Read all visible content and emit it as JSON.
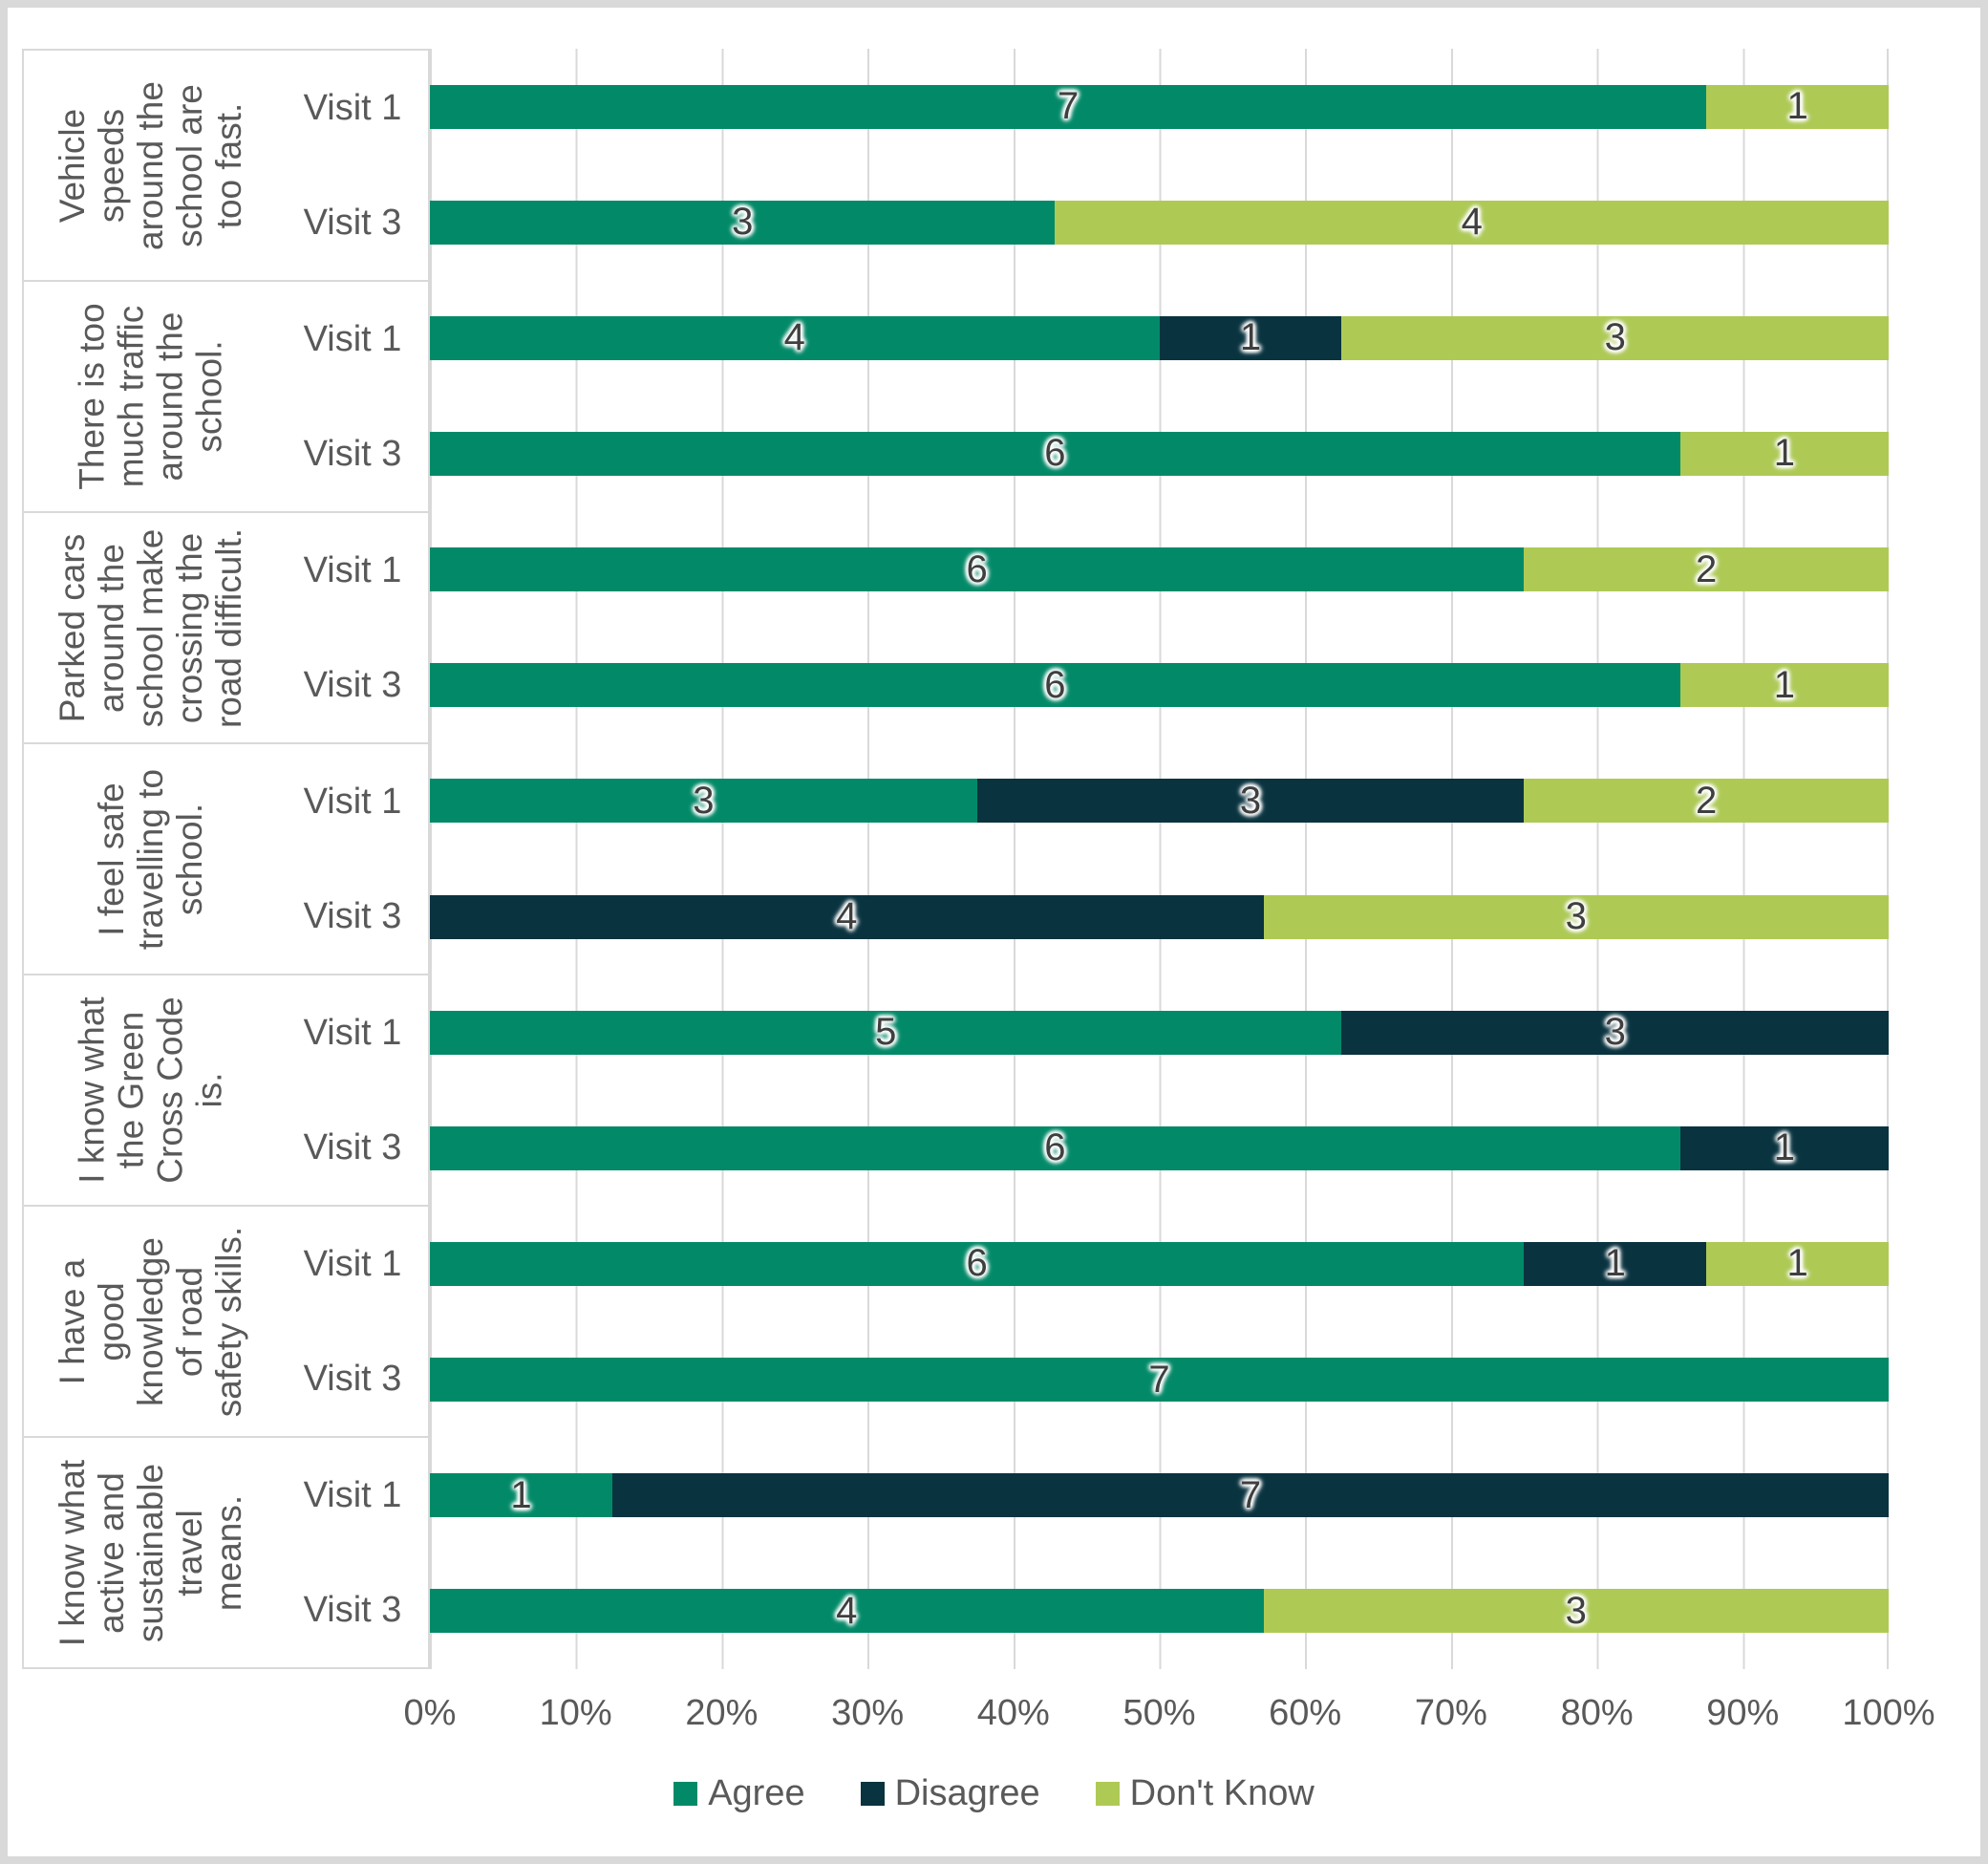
{
  "chart_data": {
    "type": "bar",
    "orientation": "horizontal",
    "stacked": true,
    "title": "",
    "series_names": [
      "Agree",
      "Disagree",
      "Don't Know"
    ],
    "series_colors": [
      "#028A68",
      "#0A3340",
      "#AECA55"
    ],
    "grid": true,
    "grid_color": "#d9d9d9",
    "x_axis": {
      "min": 0,
      "max": 100,
      "tick_step": 10,
      "ticks": [
        "0%",
        "10%",
        "20%",
        "30%",
        "40%",
        "50%",
        "60%",
        "70%",
        "80%",
        "90%",
        "100%"
      ]
    },
    "legend": {
      "position": "bottom",
      "items": [
        "Agree",
        "Disagree",
        "Don't Know"
      ]
    },
    "note": "Segment widths are value/row-total percentages; data labels show raw counts. Visit 1 rows total 8 responses, Visit 3 rows total 7 responses.",
    "groups": [
      {
        "category": "Vehicle speeds around the school are too fast.",
        "category_lines": [
          "Vehicle",
          "speeds",
          "around the",
          "school are",
          "too fast."
        ],
        "rows": [
          {
            "label": "Visit 1",
            "values": [
              7,
              0,
              1
            ]
          },
          {
            "label": "Visit 3",
            "values": [
              3,
              0,
              4
            ]
          }
        ]
      },
      {
        "category": "There is too much traffic around the school.",
        "category_lines": [
          "There is too",
          "much traffic",
          "around the",
          "school."
        ],
        "rows": [
          {
            "label": "Visit 1",
            "values": [
              4,
              1,
              3
            ]
          },
          {
            "label": "Visit 3",
            "values": [
              6,
              0,
              1
            ]
          }
        ]
      },
      {
        "category": "Parked cars around the school make crossing the road difficult.",
        "category_lines": [
          "Parked cars",
          "around the",
          "school make",
          "crossing the",
          "road difficult."
        ],
        "rows": [
          {
            "label": "Visit 1",
            "values": [
              6,
              0,
              2
            ]
          },
          {
            "label": "Visit 3",
            "values": [
              6,
              0,
              1
            ]
          }
        ]
      },
      {
        "category": "I feel safe travelling to school.",
        "category_lines": [
          "I feel safe",
          "travelling to",
          "school."
        ],
        "rows": [
          {
            "label": "Visit 1",
            "values": [
              3,
              3,
              2
            ]
          },
          {
            "label": "Visit 3",
            "values": [
              0,
              4,
              3
            ]
          }
        ]
      },
      {
        "category": "I know what the Green Cross Code is.",
        "category_lines": [
          "I know what",
          "the Green",
          "Cross Code",
          "is."
        ],
        "rows": [
          {
            "label": "Visit 1",
            "values": [
              5,
              3,
              0
            ]
          },
          {
            "label": "Visit 3",
            "values": [
              6,
              1,
              0
            ]
          }
        ]
      },
      {
        "category": "I have a good knowledge of road safety skills.",
        "category_lines": [
          "I have a",
          "good",
          "knowledge",
          "of road",
          "safety skills."
        ],
        "rows": [
          {
            "label": "Visit 1",
            "values": [
              6,
              1,
              1
            ]
          },
          {
            "label": "Visit 3",
            "values": [
              7,
              0,
              0
            ]
          }
        ]
      },
      {
        "category": "I know what active and sustainable travel means.",
        "category_lines": [
          "I know what",
          "active and",
          "sustainable",
          "travel",
          "means."
        ],
        "rows": [
          {
            "label": "Visit 1",
            "values": [
              1,
              7,
              0
            ]
          },
          {
            "label": "Visit 3",
            "values": [
              4,
              0,
              3
            ]
          }
        ]
      }
    ]
  }
}
